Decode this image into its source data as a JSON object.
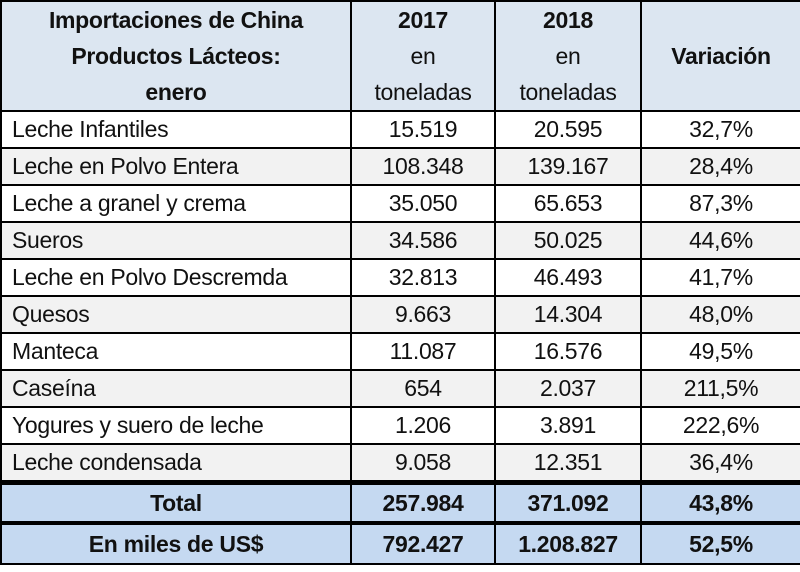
{
  "header": {
    "title_lines": [
      "Importaciones de China",
      "Productos Lácteos:",
      "enero"
    ],
    "col_2017": {
      "year": "2017",
      "unit_1": "en",
      "unit_2": "toneladas"
    },
    "col_2018": {
      "year": "2018",
      "unit_1": "en",
      "unit_2": "toneladas"
    },
    "col_var": "Variación"
  },
  "rows": [
    {
      "product": "Leche Infantiles",
      "v2017": "15.519",
      "v2018": "20.595",
      "variation": "32,7%"
    },
    {
      "product": "Leche en Polvo Entera",
      "v2017": "108.348",
      "v2018": "139.167",
      "variation": "28,4%"
    },
    {
      "product": "Leche a granel y crema",
      "v2017": "35.050",
      "v2018": "65.653",
      "variation": "87,3%"
    },
    {
      "product": "Sueros",
      "v2017": "34.586",
      "v2018": "50.025",
      "variation": "44,6%"
    },
    {
      "product": "Leche en Polvo Descremda",
      "v2017": "32.813",
      "v2018": "46.493",
      "variation": "41,7%"
    },
    {
      "product": "Quesos",
      "v2017": "9.663",
      "v2018": "14.304",
      "variation": "48,0%"
    },
    {
      "product": "Manteca",
      "v2017": "11.087",
      "v2018": "16.576",
      "variation": "49,5%"
    },
    {
      "product": "Caseína",
      "v2017": "654",
      "v2018": "2.037",
      "variation": "211,5%"
    },
    {
      "product": "Yogures y suero de leche",
      "v2017": "1.206",
      "v2018": "3.891",
      "variation": "222,6%"
    },
    {
      "product": "Leche condensada",
      "v2017": "9.058",
      "v2018": "12.351",
      "variation": "36,4%"
    }
  ],
  "total": {
    "label": "Total",
    "v2017": "257.984",
    "v2018": "371.092",
    "variation": "43,8%"
  },
  "usd": {
    "label": "En miles de US$",
    "v2017": "792.427",
    "v2018": "1.208.827",
    "variation": "52,5%"
  }
}
